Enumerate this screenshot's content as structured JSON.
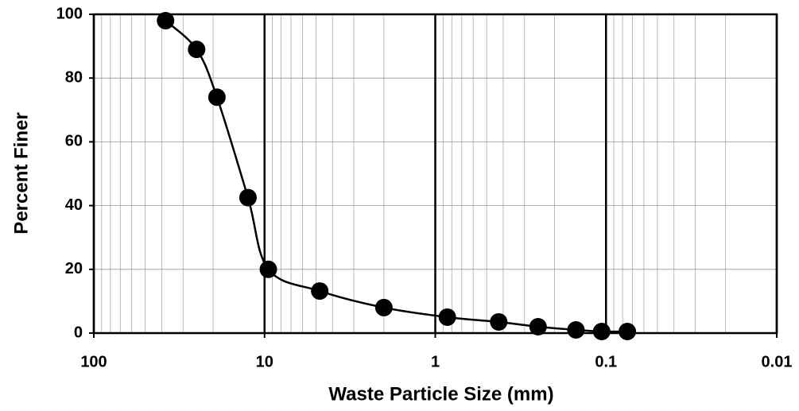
{
  "chart_data": {
    "type": "line",
    "x_label": "Waste Particle Size (mm)",
    "y_label": "Percent Finer",
    "x": [
      38,
      25,
      19,
      12.5,
      9.5,
      4.75,
      2,
      0.85,
      0.425,
      0.25,
      0.15,
      0.106,
      0.075
    ],
    "series": [
      {
        "color": "#000000",
        "values": [
          98,
          89,
          74,
          42.5,
          20,
          13.2,
          8,
          5,
          3.5,
          2,
          1,
          0.5,
          0.5
        ]
      }
    ],
    "xscale": "log",
    "xlim": [
      100,
      0.01
    ],
    "xticks": [
      100,
      10,
      1,
      0.1,
      0.01
    ],
    "ylim": [
      0,
      100
    ],
    "yticks": [
      0,
      20,
      40,
      60,
      80,
      100
    ],
    "grid": true,
    "smooth": true
  }
}
